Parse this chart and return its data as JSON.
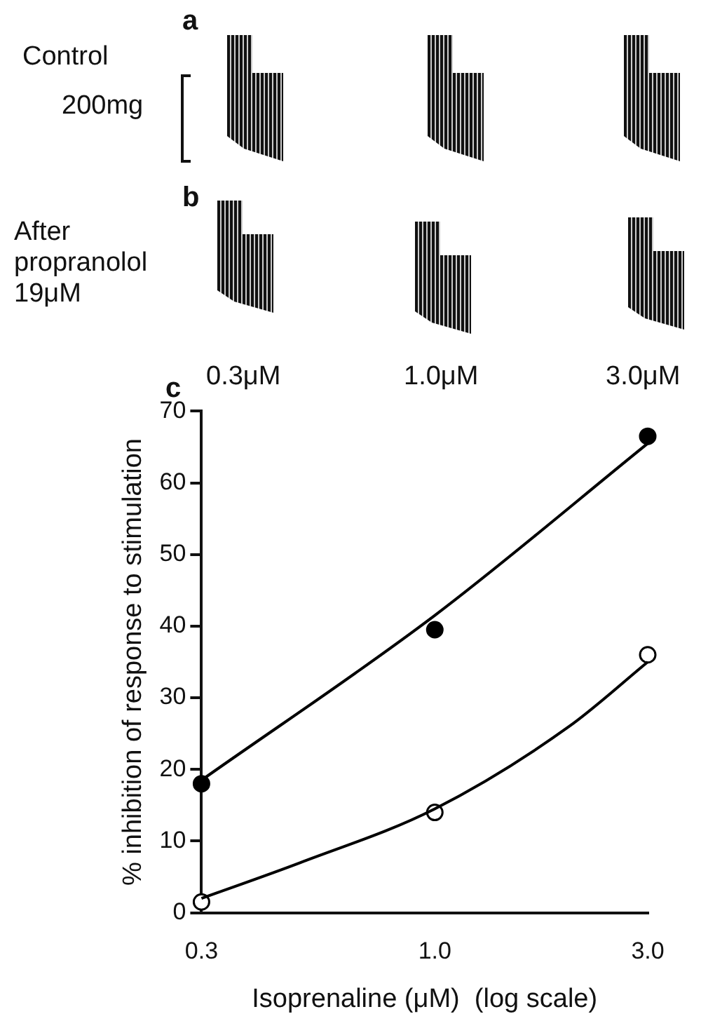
{
  "chart_data": {
    "type": "scatter",
    "xlabel": "Isoprenaline (μM)  (log scale)",
    "ylabel": "% inhibition of response to stimulation",
    "log": "x",
    "grid": false,
    "legend": false,
    "xlim": [
      0.3,
      3.0
    ],
    "xticks": [
      0.3,
      {
        "value": 1,
        "label": "1.0"
      },
      {
        "value": 3,
        "label": "3.0"
      }
    ],
    "ylim": [
      0,
      70
    ],
    "yticks": [
      0,
      10,
      20,
      30,
      40,
      50,
      60,
      70
    ],
    "annotations": [
      "a",
      "Control",
      "200mg",
      "b",
      "After propranolol 19μM",
      "0.3μM",
      "1.0μM",
      "3.0μM",
      "c"
    ],
    "series": [
      {
        "type": "line",
        "color": "#000000",
        "marker": "none",
        "line_style": "solid",
        "x": [
          0.3,
          1,
          3
        ],
        "values": [
          18.5,
          41.5,
          65.5
        ]
      },
      {
        "type": "line",
        "color": "#000000",
        "marker": "none",
        "line_style": "solid",
        "x": [
          0.3,
          0.5,
          1,
          2,
          3
        ],
        "values": [
          2,
          7,
          14.5,
          26,
          35
        ]
      },
      {
        "type": "scatter",
        "color": "#000000",
        "marker": "circle",
        "x": [
          0.3,
          1,
          3
        ],
        "values": [
          18,
          39.5,
          66.5
        ]
      },
      {
        "type": "scatter",
        "color": "#ffffff",
        "marker": "circle",
        "x": [
          0.3,
          1,
          3
        ],
        "values": [
          1.5,
          14,
          36
        ]
      }
    ]
  }
}
